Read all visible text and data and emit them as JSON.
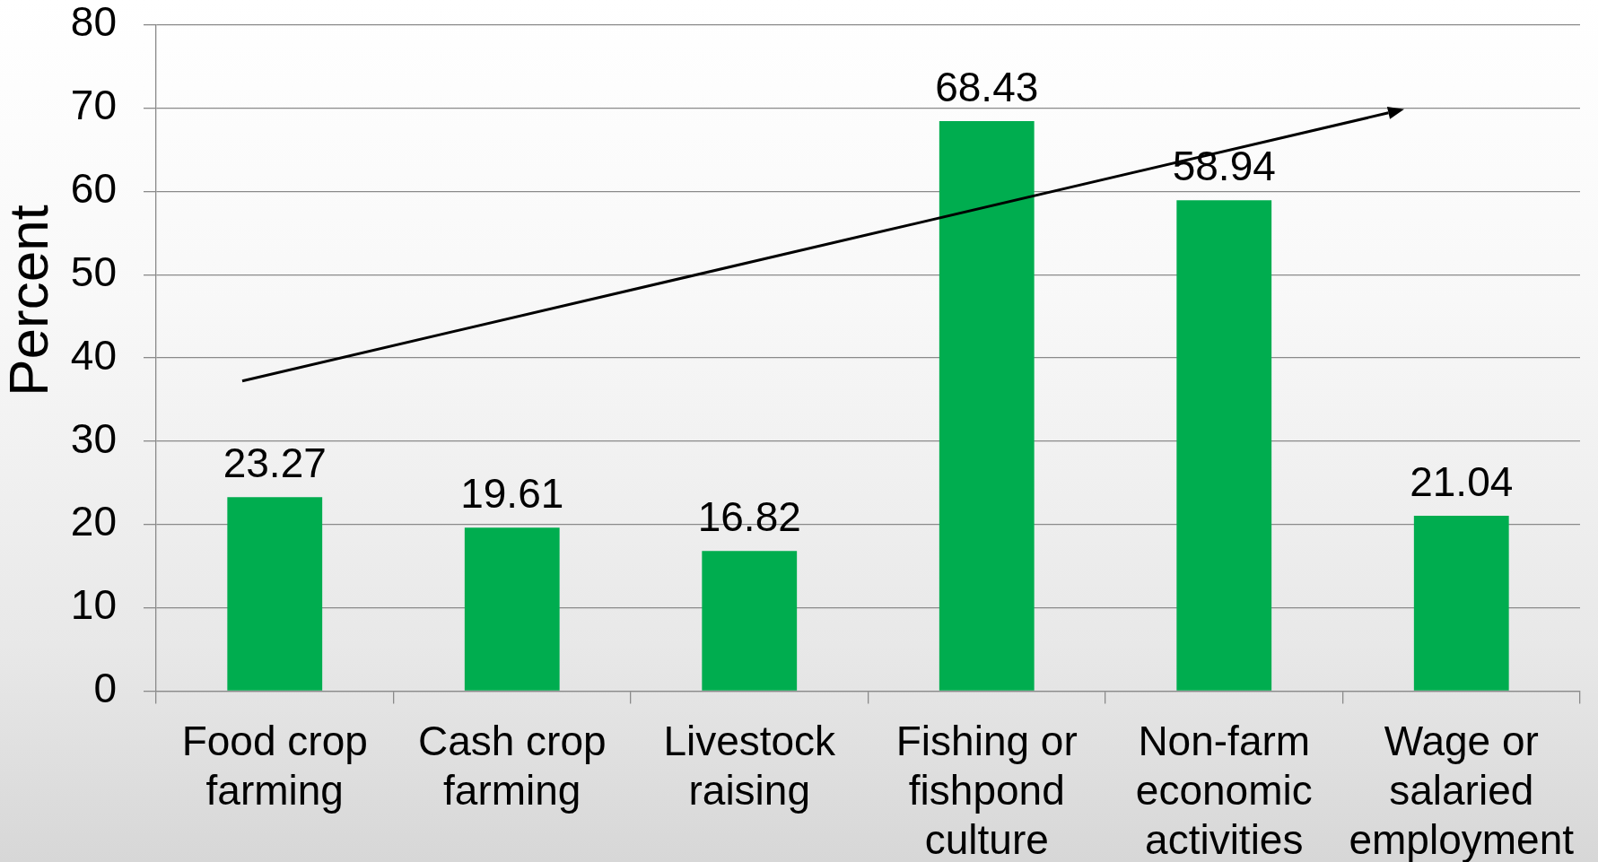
{
  "chart_data": {
    "type": "bar",
    "ylabel": "Percent",
    "categories": [
      "Food crop farming",
      "Cash crop farming",
      "Livestock raising",
      "Fishing or fishpond culture",
      "Non-farm economic activities",
      "Wage or salaried employment"
    ],
    "values": [
      23.27,
      19.61,
      16.82,
      68.43,
      58.94,
      21.04
    ],
    "color": "#00ad4f",
    "ylim": [
      0,
      80
    ],
    "yticks": [
      0,
      10,
      20,
      30,
      40,
      50,
      60,
      70,
      80
    ],
    "grid": "y",
    "data_labels": true
  }
}
